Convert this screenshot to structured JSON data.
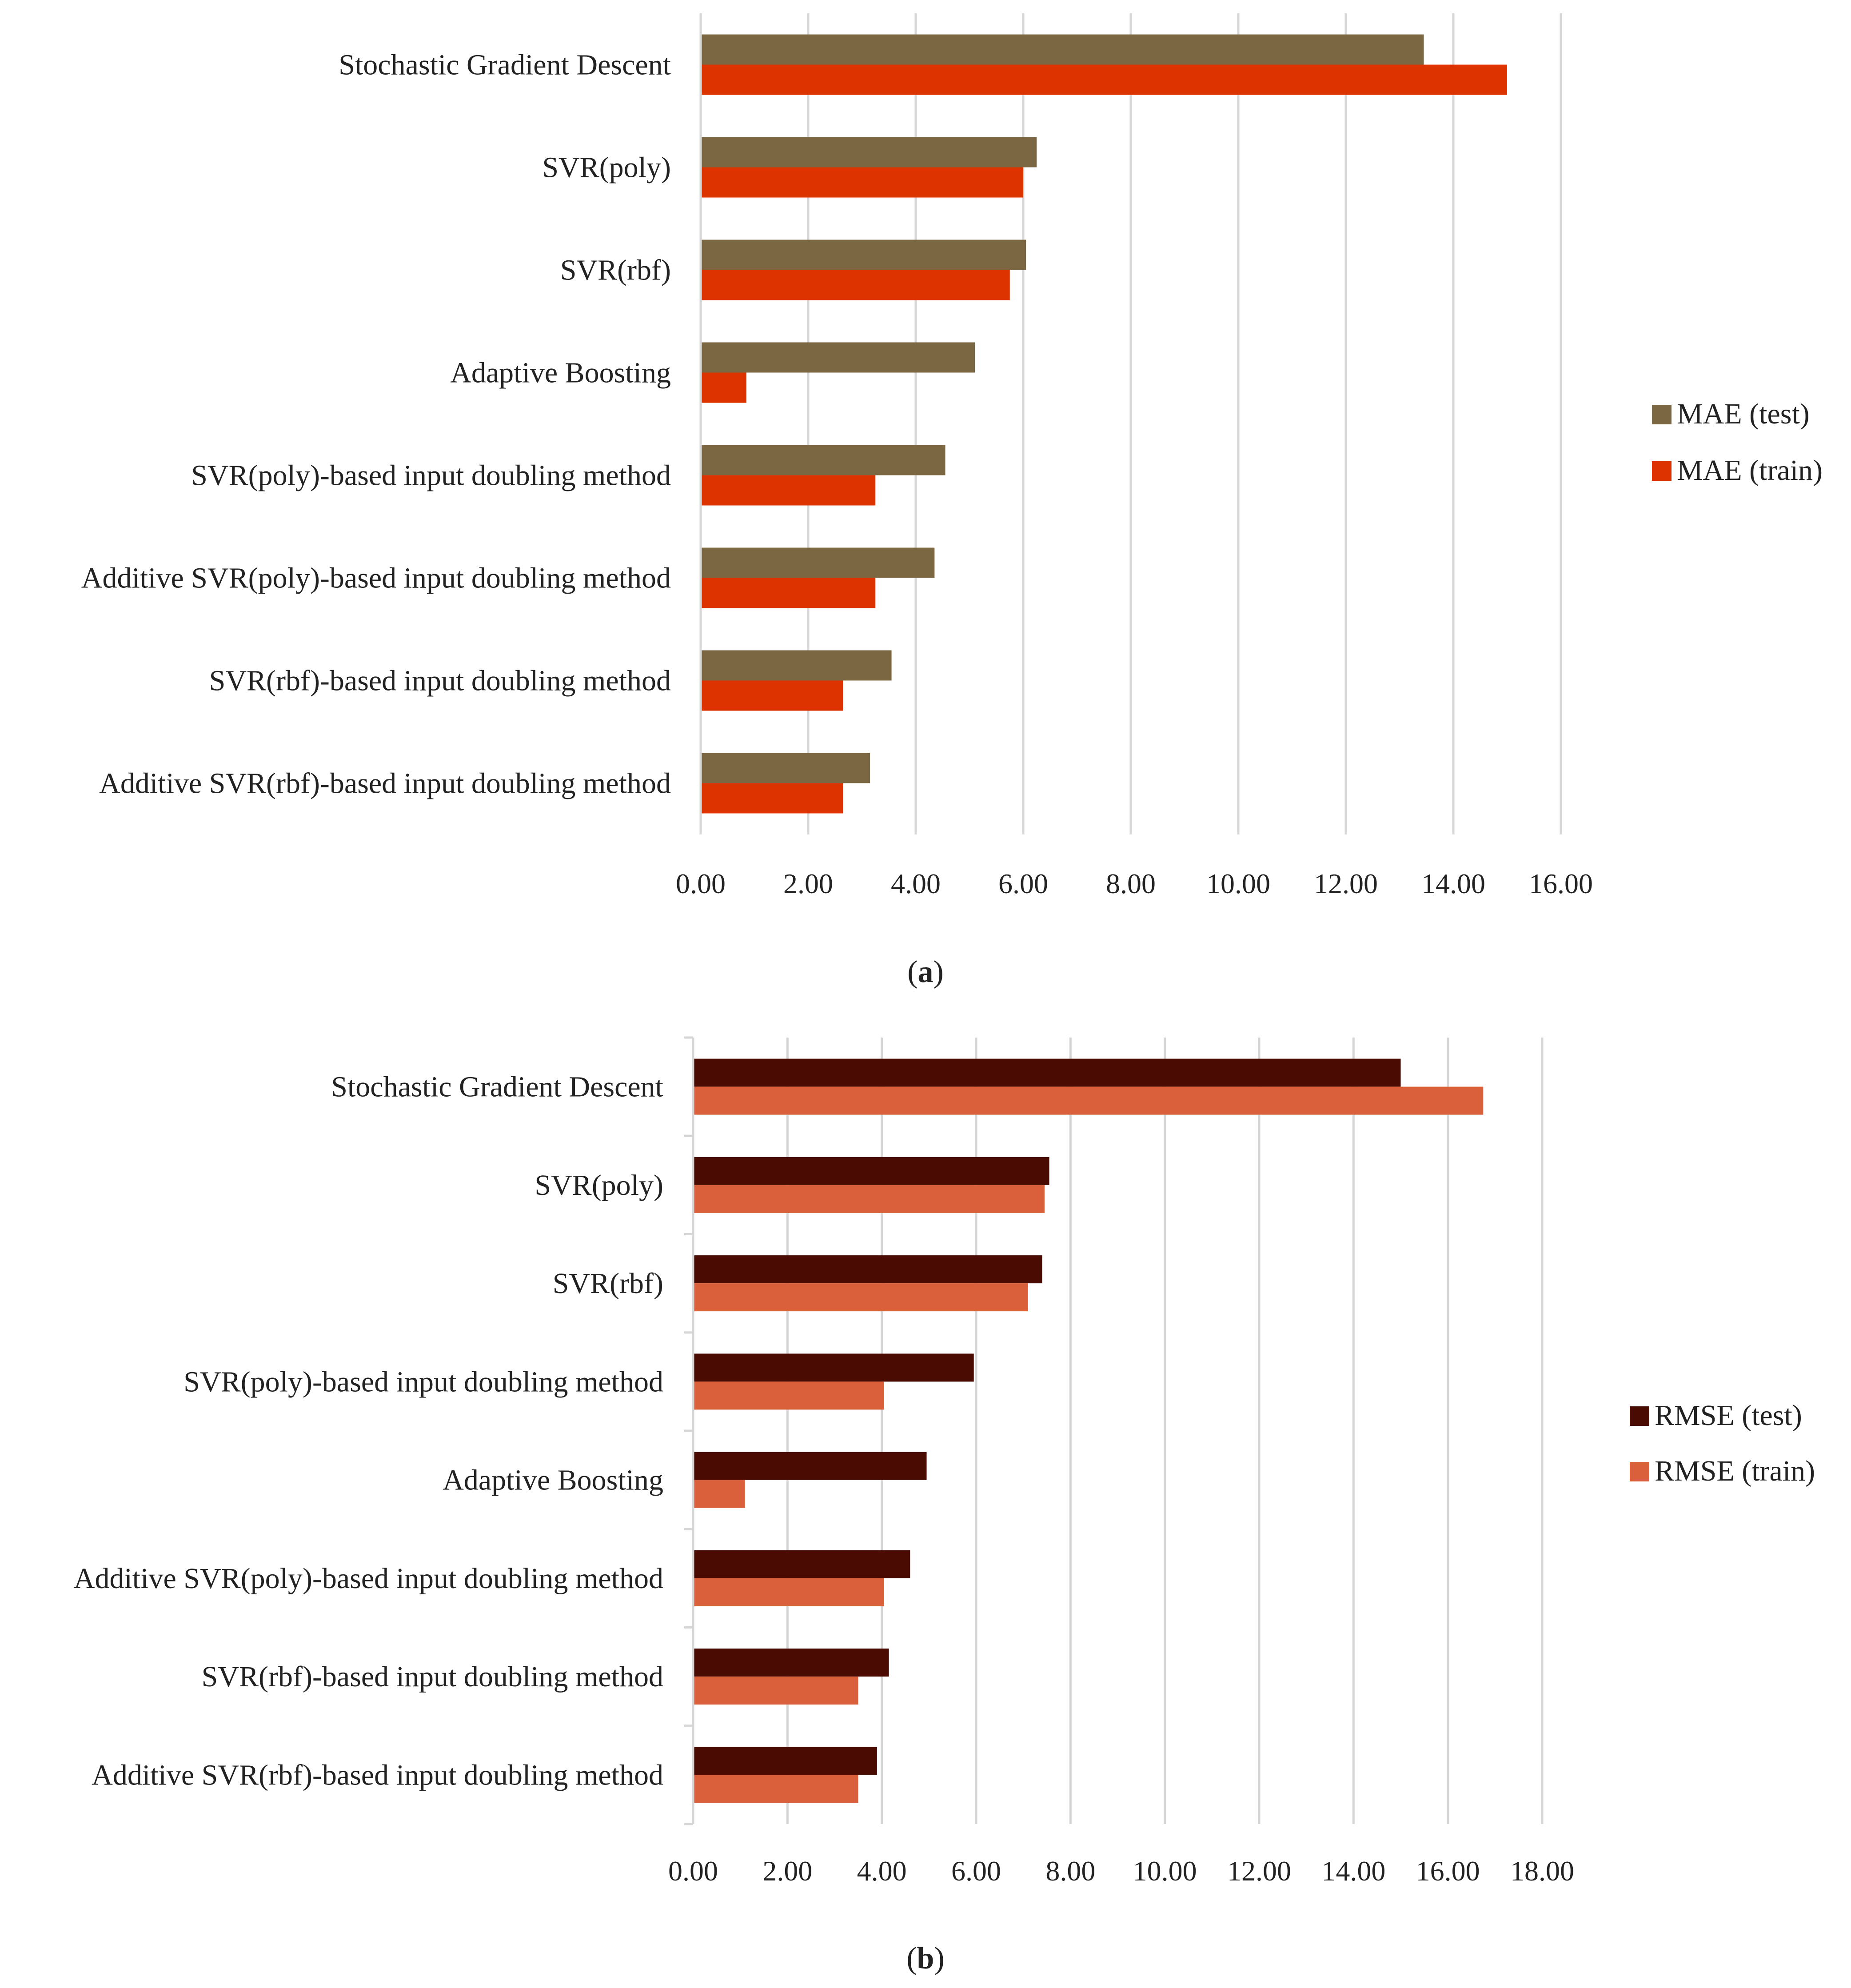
{
  "chart_data": [
    {
      "type": "bar",
      "orientation": "horizontal",
      "panel_label": "a",
      "title": "",
      "xlabel": "",
      "ylabel": "",
      "categories": [
        "Stochastic Gradient Descent",
        "SVR(poly)",
        "SVR(rbf)",
        "Adaptive Boosting",
        "SVR(poly)-based input doubling method",
        "Additive SVR(poly)-based input doubling method",
        "SVR(rbf)-based input doubling method",
        "Additive SVR(rbf)-based input doubling method"
      ],
      "series": [
        {
          "name": "MAE (test)",
          "color": "#7b6843",
          "values": [
            13.45,
            6.25,
            6.05,
            5.1,
            4.55,
            4.35,
            3.55,
            3.15
          ]
        },
        {
          "name": "MAE (train)",
          "color": "#dd3300",
          "values": [
            15.0,
            6.0,
            5.75,
            0.85,
            3.25,
            3.25,
            2.65,
            2.65
          ]
        }
      ],
      "xlim": [
        0,
        16
      ],
      "ticks": [
        "0.00",
        "2.00",
        "4.00",
        "6.00",
        "8.00",
        "10.00",
        "12.00",
        "14.00",
        "16.00"
      ],
      "grid": true,
      "legend_position": "right"
    },
    {
      "type": "bar",
      "orientation": "horizontal",
      "panel_label": "b",
      "title": "",
      "xlabel": "",
      "ylabel": "",
      "categories": [
        "Stochastic Gradient Descent",
        "SVR(poly)",
        "SVR(rbf)",
        "SVR(poly)-based input doubling method",
        "Adaptive Boosting",
        "Additive SVR(poly)-based input doubling method",
        "SVR(rbf)-based input doubling method",
        "Additive SVR(rbf)-based input doubling method"
      ],
      "series": [
        {
          "name": "RMSE (test)",
          "color": "#4a0c02",
          "values": [
            15.0,
            7.55,
            7.4,
            5.95,
            4.95,
            4.6,
            4.15,
            3.9
          ]
        },
        {
          "name": "RMSE (train)",
          "color": "#d9603b",
          "values": [
            16.75,
            7.45,
            7.1,
            4.05,
            1.1,
            4.05,
            3.5,
            3.5
          ]
        }
      ],
      "xlim": [
        0,
        18
      ],
      "ticks": [
        "0.00",
        "2.00",
        "4.00",
        "6.00",
        "8.00",
        "10.00",
        "12.00",
        "14.00",
        "16.00",
        "18.00"
      ],
      "grid": true,
      "legend_position": "right"
    }
  ]
}
